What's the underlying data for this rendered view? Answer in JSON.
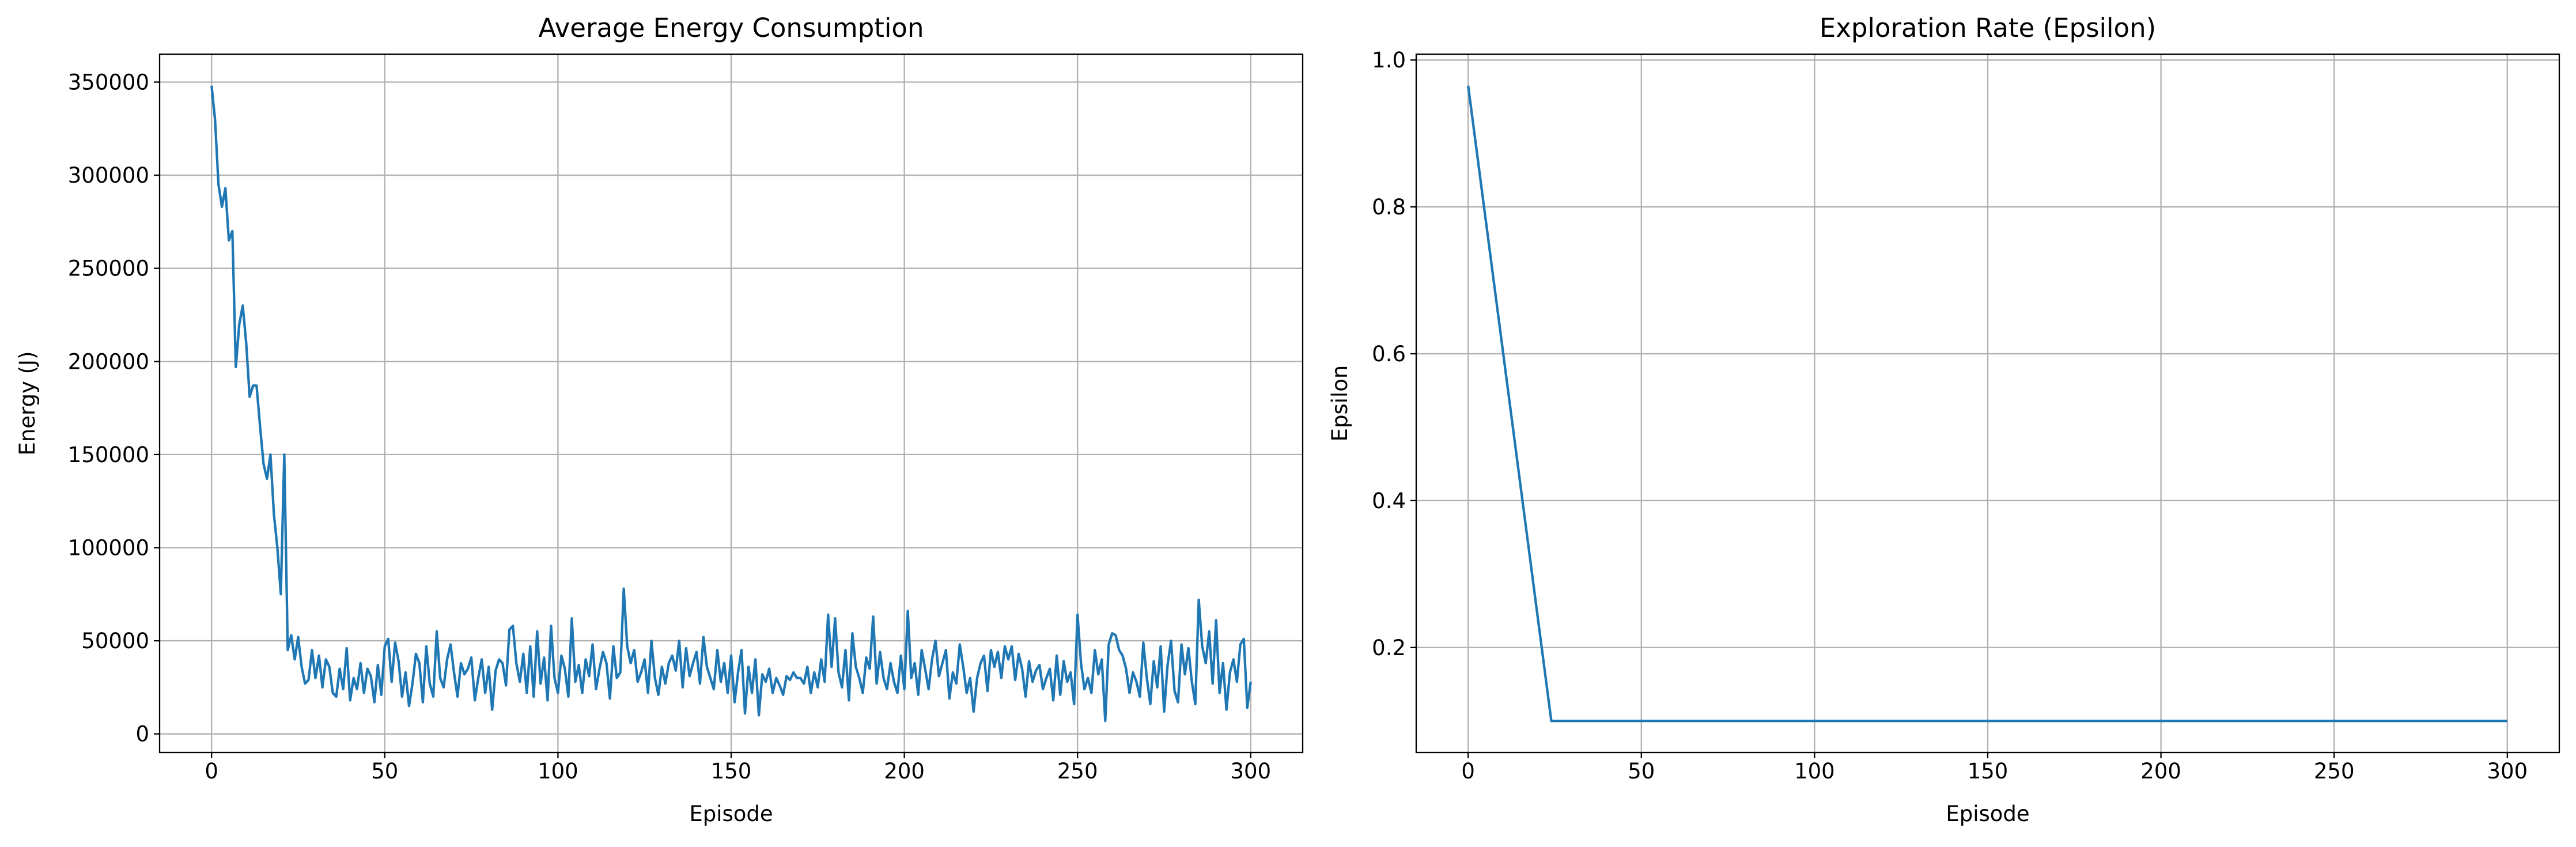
{
  "chart_data": [
    {
      "type": "line",
      "title": "Average Energy Consumption",
      "xlabel": "Episode",
      "ylabel": "Energy (J)",
      "color": "#1f77b4",
      "grid": true,
      "xlim": [
        -15,
        315
      ],
      "xticks": [
        0,
        50,
        100,
        150,
        200,
        250,
        300
      ],
      "ylim": [
        -10000,
        365000
      ],
      "yticks": [
        0,
        50000,
        100000,
        150000,
        200000,
        250000,
        300000,
        350000
      ],
      "x": [
        0,
        1,
        2,
        3,
        4,
        5,
        6,
        7,
        8,
        9,
        10,
        11,
        12,
        13,
        14,
        15,
        16,
        17,
        18,
        19,
        20,
        21,
        22,
        23,
        24,
        25,
        26,
        27,
        28,
        29,
        30,
        31,
        32,
        33,
        34,
        35,
        36,
        37,
        38,
        39,
        40,
        41,
        42,
        43,
        44,
        45,
        46,
        47,
        48,
        49,
        50,
        51,
        52,
        53,
        54,
        55,
        56,
        57,
        58,
        59,
        60,
        61,
        62,
        63,
        64,
        65,
        66,
        67,
        68,
        69,
        70,
        71,
        72,
        73,
        74,
        75,
        76,
        77,
        78,
        79,
        80,
        81,
        82,
        83,
        84,
        85,
        86,
        87,
        88,
        89,
        90,
        91,
        92,
        93,
        94,
        95,
        96,
        97,
        98,
        99,
        100,
        101,
        102,
        103,
        104,
        105,
        106,
        107,
        108,
        109,
        110,
        111,
        112,
        113,
        114,
        115,
        116,
        117,
        118,
        119,
        120,
        121,
        122,
        123,
        124,
        125,
        126,
        127,
        128,
        129,
        130,
        131,
        132,
        133,
        134,
        135,
        136,
        137,
        138,
        139,
        140,
        141,
        142,
        143,
        144,
        145,
        146,
        147,
        148,
        149,
        150,
        151,
        152,
        153,
        154,
        155,
        156,
        157,
        158,
        159,
        160,
        161,
        162,
        163,
        164,
        165,
        166,
        167,
        168,
        169,
        170,
        171,
        172,
        173,
        174,
        175,
        176,
        177,
        178,
        179,
        180,
        181,
        182,
        183,
        184,
        185,
        186,
        187,
        188,
        189,
        190,
        191,
        192,
        193,
        194,
        195,
        196,
        197,
        198,
        199,
        200,
        201,
        202,
        203,
        204,
        205,
        206,
        207,
        208,
        209,
        210,
        211,
        212,
        213,
        214,
        215,
        216,
        217,
        218,
        219,
        220,
        221,
        222,
        223,
        224,
        225,
        226,
        227,
        228,
        229,
        230,
        231,
        232,
        233,
        234,
        235,
        236,
        237,
        238,
        239,
        240,
        241,
        242,
        243,
        244,
        245,
        246,
        247,
        248,
        249,
        250,
        251,
        252,
        253,
        254,
        255,
        256,
        257,
        258,
        259,
        260,
        261,
        262,
        263,
        264,
        265,
        266,
        267,
        268,
        269,
        270,
        271,
        272,
        273,
        274,
        275,
        276,
        277,
        278,
        279,
        280,
        281,
        282,
        283,
        284,
        285,
        286,
        287,
        288,
        289,
        290,
        291,
        292,
        293,
        294,
        295,
        296,
        297,
        298,
        299,
        300
      ],
      "values": [
        348000,
        330000,
        295000,
        283000,
        293000,
        265000,
        270000,
        197000,
        220000,
        230000,
        210000,
        181000,
        187000,
        187000,
        165000,
        145000,
        137000,
        150000,
        118000,
        100000,
        75000,
        150000,
        45000,
        53000,
        40000,
        52000,
        36000,
        27000,
        29000,
        45000,
        30000,
        42000,
        25000,
        40000,
        36000,
        22000,
        20000,
        35000,
        24000,
        46000,
        18000,
        30000,
        24000,
        38000,
        22000,
        35000,
        31000,
        17000,
        37000,
        21000,
        47000,
        51000,
        28000,
        49000,
        39000,
        20000,
        33000,
        15000,
        27000,
        43000,
        38000,
        17000,
        47000,
        27000,
        20000,
        55000,
        30000,
        25000,
        40000,
        48000,
        33000,
        20000,
        38000,
        32000,
        35000,
        41000,
        18000,
        30000,
        40000,
        22000,
        36000,
        13000,
        34000,
        40000,
        38000,
        26000,
        56000,
        58000,
        38000,
        28000,
        43000,
        22000,
        47000,
        20000,
        55000,
        27000,
        41000,
        18000,
        58000,
        30000,
        22000,
        42000,
        35000,
        20000,
        62000,
        28000,
        37000,
        22000,
        40000,
        31000,
        48000,
        24000,
        35000,
        44000,
        38000,
        19000,
        47000,
        30000,
        33000,
        78000,
        47000,
        38000,
        45000,
        28000,
        33000,
        40000,
        22000,
        50000,
        30000,
        21000,
        36000,
        27000,
        38000,
        42000,
        34000,
        50000,
        25000,
        46000,
        31000,
        38000,
        44000,
        27000,
        52000,
        36000,
        30000,
        24000,
        45000,
        28000,
        38000,
        22000,
        42000,
        17000,
        33000,
        45000,
        11000,
        36000,
        22000,
        40000,
        10000,
        32000,
        28000,
        35000,
        22000,
        30000,
        26000,
        21000,
        31000,
        29000,
        33000,
        30000,
        30000,
        27000,
        36000,
        22000,
        33000,
        25000,
        40000,
        28000,
        64000,
        36000,
        62000,
        33000,
        25000,
        45000,
        18000,
        54000,
        36000,
        30000,
        22000,
        41000,
        35000,
        63000,
        27000,
        44000,
        30000,
        24000,
        38000,
        28000,
        22000,
        42000,
        24000,
        66000,
        30000,
        38000,
        21000,
        45000,
        35000,
        24000,
        40000,
        50000,
        31000,
        38000,
        45000,
        19000,
        33000,
        27000,
        48000,
        36000,
        22000,
        30000,
        12000,
        30000,
        38000,
        42000,
        23000,
        45000,
        36000,
        44000,
        30000,
        47000,
        40000,
        47000,
        29000,
        43000,
        35000,
        20000,
        39000,
        28000,
        34000,
        37000,
        24000,
        30000,
        35000,
        18000,
        42000,
        21000,
        39000,
        28000,
        33000,
        16000,
        64000,
        38000,
        24000,
        30000,
        22000,
        45000,
        32000,
        40000,
        7000,
        48000,
        54000,
        53000,
        45000,
        42000,
        35000,
        22000,
        33000,
        28000,
        20000,
        49000,
        30000,
        16000,
        39000,
        25000,
        47000,
        12000,
        37000,
        50000,
        23000,
        17000,
        48000,
        32000,
        46000,
        28000,
        16000,
        72000,
        47000,
        38000,
        55000,
        27000,
        61000,
        22000,
        38000,
        13000,
        33000,
        40000,
        28000,
        48000,
        51000,
        14000,
        28000
      ]
    },
    {
      "type": "line",
      "title": "Exploration Rate (Epsilon)",
      "xlabel": "Episode",
      "ylabel": "Epsilon",
      "color": "#1f77b4",
      "grid": true,
      "xlim": [
        -15,
        315
      ],
      "xticks": [
        0,
        50,
        100,
        150,
        200,
        250,
        300
      ],
      "ylim": [
        0.057,
        1.008
      ],
      "yticks": [
        0.2,
        0.4,
        0.6,
        0.8,
        {
          "value": 1.0,
          "label": "1.0"
        }
      ],
      "x": [
        0,
        24,
        300
      ],
      "values": [
        0.965,
        0.1,
        0.1
      ]
    }
  ]
}
